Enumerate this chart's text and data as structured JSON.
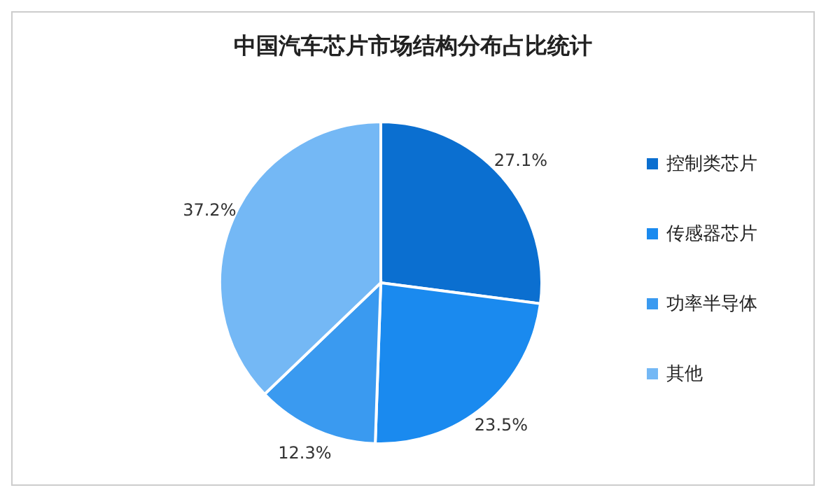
{
  "chart_data": {
    "type": "pie",
    "title": "中国汽车芯片市场结构分布占比统计",
    "categories": [
      "控制类芯片",
      "传感器芯片",
      "功率半导体",
      "其他"
    ],
    "values": [
      27.1,
      23.5,
      12.3,
      37.2
    ],
    "value_labels": [
      "27.1%",
      "23.5%",
      "12.3%",
      "37.2%"
    ],
    "colors": [
      "#0b6fd0",
      "#1a8aef",
      "#3a9af0",
      "#74b8f5"
    ],
    "legend": "right"
  }
}
